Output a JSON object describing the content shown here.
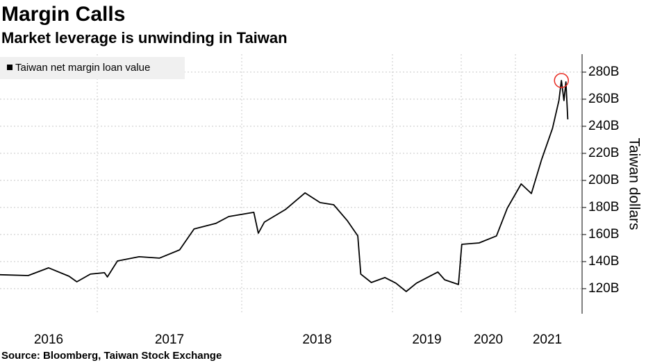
{
  "chart_data": {
    "type": "line",
    "title": "Margin Calls",
    "subtitle": "Market leverage is unwinding in Taiwan",
    "y_label": "Taiwan dollars",
    "source": "Source: Bloomberg, Taiwan Stock Exchange",
    "legend_position": "upper left",
    "grid": true,
    "xlim": [
      2016,
      2022.04
    ],
    "xticks": [
      2016,
      2017,
      2018,
      2019,
      2020,
      2021
    ],
    "ylim": [
      101.5,
      293.3
    ],
    "yticks": [
      {
        "value": 120,
        "label": "120B"
      },
      {
        "value": 140,
        "label": "140B"
      },
      {
        "value": 160,
        "label": "160B"
      },
      {
        "value": 180,
        "label": "180B"
      },
      {
        "value": 200,
        "label": "200B"
      },
      {
        "value": 220,
        "label": "220B"
      },
      {
        "value": 240,
        "label": "240B"
      },
      {
        "value": 260,
        "label": "260B"
      },
      {
        "value": 280,
        "label": "280B"
      }
    ],
    "x": [
      2016.0,
      2016.29,
      2016.5,
      2016.71,
      2016.79,
      2016.93,
      2017.05,
      2017.07,
      2017.14,
      2017.29,
      2017.43,
      2017.57,
      2017.67,
      2017.82,
      2017.91,
      2018.08,
      2018.11,
      2018.15,
      2018.29,
      2018.42,
      2018.52,
      2018.61,
      2018.7,
      2018.77,
      2018.79,
      2018.86,
      2018.95,
      2019.05,
      2019.2,
      2019.35,
      2019.66,
      2019.76,
      2019.96,
      2020.01,
      2020.33,
      2020.65,
      2020.85,
      2021.09,
      2021.25,
      2021.41,
      2021.58,
      2021.68,
      2021.72,
      2021.76,
      2021.79,
      2021.82
    ],
    "series": [
      {
        "name": "Taiwan net margin loan value",
        "color": "#000000",
        "values": [
          130.3,
          129.7,
          135.4,
          129.2,
          125.1,
          130.8,
          131.8,
          128.7,
          140.5,
          143.6,
          142.6,
          148.7,
          164.1,
          168.2,
          173.3,
          176.4,
          161,
          169.2,
          178.5,
          190.8,
          183.6,
          182,
          170.3,
          159,
          130.8,
          124.6,
          128.2,
          124.1,
          117.9,
          124.1,
          132.3,
          126.6,
          123.1,
          152.8,
          153.8,
          159,
          179.5,
          197.4,
          190.3,
          215.4,
          238.5,
          259,
          273.8,
          259,
          272.8,
          245.1
        ]
      }
    ],
    "highlight_color": "#e8281e",
    "highlight_index": 42
  }
}
